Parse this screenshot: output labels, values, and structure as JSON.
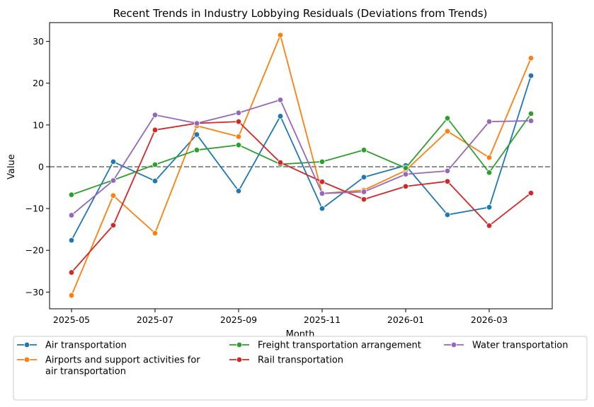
{
  "chart_data": {
    "type": "line",
    "title": "Recent Trends in Industry Lobbying Residuals (Deviations from Trends)",
    "xlabel": "Month",
    "ylabel": "Value",
    "x": [
      "2025-05",
      "2025-06",
      "2025-07",
      "2025-08",
      "2025-09",
      "2025-10",
      "2025-11",
      "2025-12",
      "2026-01",
      "2026-02",
      "2026-03",
      "2026-04"
    ],
    "x_tick_labels": [
      "2025-05",
      "2025-07",
      "2025-09",
      "2025-11",
      "2026-01",
      "2026-03"
    ],
    "ylim": [
      -34,
      34.5
    ],
    "y_ticks": [
      -30,
      -20,
      -10,
      0,
      10,
      20,
      30
    ],
    "reference_line": 0,
    "grid": false,
    "legend_position": "bottom",
    "series": [
      {
        "name": "Air transportation",
        "color": "#1f77b4",
        "values": [
          -17.6,
          1.2,
          -3.4,
          7.7,
          -5.8,
          12.1,
          -10.0,
          -2.5,
          0.3,
          -11.5,
          -9.7,
          21.8
        ]
      },
      {
        "name": "Airports and support activities for air transportation",
        "color": "#ff7f0e",
        "values": [
          -30.8,
          -6.9,
          -15.9,
          9.8,
          7.2,
          31.5,
          -6.4,
          -5.6,
          -0.9,
          8.5,
          2.2,
          26.0
        ]
      },
      {
        "name": "Freight transportation arrangement",
        "color": "#2ca02c",
        "values": [
          -6.7,
          -3.2,
          0.5,
          4.0,
          5.2,
          0.6,
          1.2,
          4.0,
          -0.3,
          11.6,
          -1.4,
          12.7
        ]
      },
      {
        "name": "Rail transportation",
        "color": "#d62728",
        "values": [
          -25.3,
          -14.0,
          8.8,
          10.4,
          10.8,
          1.0,
          -3.6,
          -7.8,
          -4.7,
          -3.5,
          -14.1,
          -6.3
        ]
      },
      {
        "name": "Water transportation",
        "color": "#9467bd",
        "values": [
          -11.6,
          -3.3,
          12.4,
          10.4,
          12.9,
          16.0,
          -6.4,
          -6.0,
          -1.8,
          -1.0,
          10.8,
          11.0
        ]
      }
    ]
  }
}
